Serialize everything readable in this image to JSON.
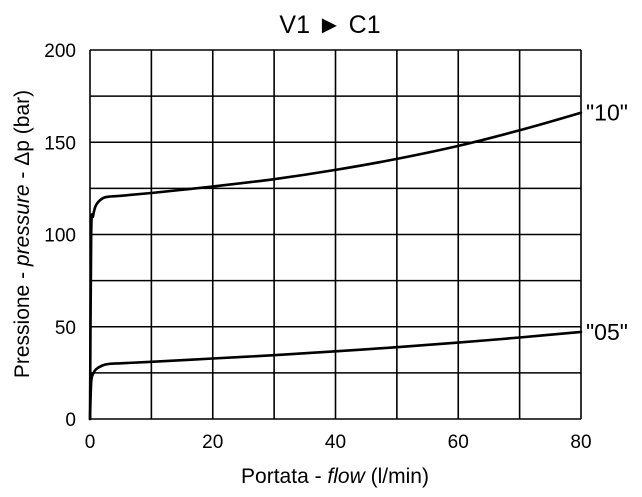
{
  "chart_data": {
    "type": "line",
    "title": {
      "from": "V1",
      "arrow": "►",
      "to": "C1"
    },
    "xlabel": {
      "prefix": "Portata - ",
      "italic": "flow",
      "suffix": " (l/min)"
    },
    "ylabel": {
      "prefix": "Pressione - ",
      "italic": "pressure",
      "suffix": " - Δp (bar)"
    },
    "xlim": [
      0,
      80
    ],
    "ylim": [
      0,
      200
    ],
    "x_tick_labels": [
      0,
      20,
      40,
      60,
      80
    ],
    "y_tick_labels": [
      0,
      50,
      100,
      150,
      200
    ],
    "x_grid": [
      0,
      10,
      20,
      30,
      40,
      50,
      60,
      70,
      80
    ],
    "y_grid": [
      0,
      25,
      50,
      75,
      100,
      125,
      150,
      175,
      200
    ],
    "grid": true,
    "series": [
      {
        "name": "\"10\"",
        "x": [
          0,
          0.2,
          0.5,
          1,
          2,
          3,
          5,
          10,
          20,
          30,
          40,
          50,
          60,
          70,
          80
        ],
        "y": [
          0,
          100,
          110,
          116,
          119.5,
          120.5,
          121,
          122.5,
          126,
          130,
          135,
          141,
          148,
          156.5,
          166
        ]
      },
      {
        "name": "\"05\"",
        "x": [
          0,
          0.2,
          0.5,
          1,
          2,
          3,
          5,
          10,
          20,
          30,
          40,
          50,
          60,
          70,
          80
        ],
        "y": [
          0,
          20,
          24.5,
          27,
          29,
          29.8,
          30.2,
          31,
          32.8,
          34.6,
          36.7,
          38.9,
          41.4,
          44.2,
          47.2
        ]
      }
    ]
  }
}
